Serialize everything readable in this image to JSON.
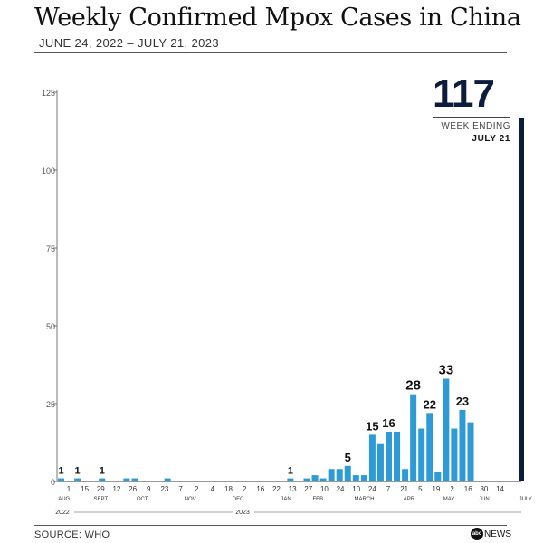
{
  "title": "Weekly Confirmed Mpox Cases in China",
  "subtitle": "JUNE 24, 2022 – JULY 21, 2023",
  "source": "SOURCE: WHO",
  "logo_text": "NEWS",
  "logo_mark": "abc",
  "callout": {
    "value": "117",
    "label": "WEEK ENDING",
    "date": "JULY 21"
  },
  "colors": {
    "bar": "#2e9ad6",
    "highlight_bar": "#0d1b3d",
    "axis": "#777777",
    "text": "#333333"
  },
  "chart_data": {
    "type": "bar",
    "title": "Weekly Confirmed Mpox Cases in China",
    "subtitle": "JUNE 24, 2022 – JULY 21, 2023",
    "ylim": [
      0,
      125
    ],
    "yticks": [
      0,
      25,
      50,
      75,
      100,
      125
    ],
    "grid": false,
    "values": [
      1,
      0,
      1,
      0,
      0,
      1,
      0,
      0,
      1,
      1,
      0,
      0,
      0,
      1,
      0,
      0,
      0,
      0,
      0,
      0,
      0,
      0,
      0,
      0,
      0,
      0,
      0,
      0,
      1,
      0,
      1,
      2,
      1,
      4,
      4,
      5,
      2,
      2,
      15,
      12,
      16,
      16,
      4,
      28,
      17,
      22,
      3,
      33,
      17,
      23,
      19,
      117
    ],
    "highlight_index": 51,
    "value_labels": [
      {
        "index": 0,
        "text": "1"
      },
      {
        "index": 2,
        "text": "1"
      },
      {
        "index": 5,
        "text": "1"
      },
      {
        "index": 28,
        "text": "1"
      },
      {
        "index": 35,
        "text": "5"
      },
      {
        "index": 38,
        "text": "15"
      },
      {
        "index": 40,
        "text": "16"
      },
      {
        "index": 43,
        "text": "28"
      },
      {
        "index": 45,
        "text": "22"
      },
      {
        "index": 47,
        "text": "33"
      },
      {
        "index": 49,
        "text": "23"
      }
    ],
    "day_ticks": [
      {
        "index": 1,
        "text": "1"
      },
      {
        "index": 2,
        "text": "15"
      },
      {
        "index": 3,
        "text": "29"
      },
      {
        "index": 4,
        "text": "12"
      },
      {
        "index": 5,
        "text": "26"
      },
      {
        "index": 6,
        "text": "9"
      },
      {
        "index": 7,
        "text": "23"
      },
      {
        "index": 8,
        "text": "7"
      },
      {
        "index": 9,
        "text": "2"
      },
      {
        "index": 10,
        "text": "4"
      },
      {
        "index": 11,
        "text": "18"
      },
      {
        "index": 12,
        "text": "2"
      },
      {
        "index": 13,
        "text": "16"
      },
      {
        "index": 14,
        "text": "22"
      },
      {
        "index": 15,
        "text": "13"
      },
      {
        "index": 16,
        "text": "27"
      },
      {
        "index": 17,
        "text": "10"
      },
      {
        "index": 18,
        "text": "24"
      },
      {
        "index": 19,
        "text": "10"
      },
      {
        "index": 20,
        "text": "24"
      },
      {
        "index": 21,
        "text": "7"
      },
      {
        "index": 22,
        "text": "21"
      },
      {
        "index": 23,
        "text": "5"
      },
      {
        "index": 24,
        "text": "19"
      },
      {
        "index": 25,
        "text": "2"
      },
      {
        "index": 26,
        "text": "16"
      },
      {
        "index": 27,
        "text": "30"
      },
      {
        "index": 28,
        "text": "14"
      }
    ],
    "month_ticks": [
      {
        "index": 0.7,
        "text": "AUG"
      },
      {
        "index": 3.0,
        "text": "SEPT"
      },
      {
        "index": 5.6,
        "text": "OCT"
      },
      {
        "index": 8.6,
        "text": "NOV"
      },
      {
        "index": 11.6,
        "text": "DEC"
      },
      {
        "index": 14.6,
        "text": "JAN"
      },
      {
        "index": 16.6,
        "text": "FEB"
      },
      {
        "index": 19.5,
        "text": "MARCH"
      },
      {
        "index": 22.3,
        "text": "APR"
      },
      {
        "index": 24.8,
        "text": "MAY"
      },
      {
        "index": 27.0,
        "text": "JUN"
      },
      {
        "index": 29.6,
        "text": "JULY"
      }
    ],
    "years": [
      {
        "text": "2022"
      },
      {
        "text": "2023"
      }
    ]
  }
}
